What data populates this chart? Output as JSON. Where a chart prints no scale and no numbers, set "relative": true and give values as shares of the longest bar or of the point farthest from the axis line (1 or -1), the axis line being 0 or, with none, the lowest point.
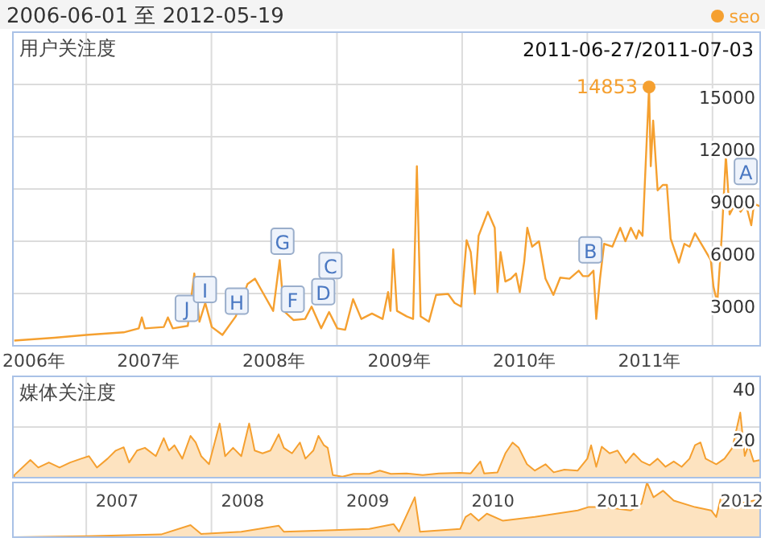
{
  "chart_data": [
    {
      "type": "line",
      "title": "2006-06-01 至 2012-05-19",
      "ylabel": "用户关注度",
      "legend": "top right",
      "grid": true,
      "xlim": [
        "2006-06-01",
        "2012-05-19"
      ],
      "ylim": [
        0,
        18000
      ],
      "yticks": [
        3000,
        6000,
        9000,
        12000,
        15000
      ],
      "xticks": [
        {
          "value": "2006-08-01",
          "label": "2006年"
        },
        {
          "value": "2007-07-01",
          "label": "2007年"
        },
        {
          "value": "2008-07-01",
          "label": "2008年"
        },
        {
          "value": "2009-07-01",
          "label": "2009年"
        },
        {
          "value": "2010-07-01",
          "label": "2010年"
        },
        {
          "value": "2011-07-01",
          "label": "2011年"
        },
        {
          "value": "2007-01-01",
          "label": null
        },
        {
          "value": "2008-01-01",
          "label": null
        },
        {
          "value": "2009-01-01",
          "label": null
        },
        {
          "value": "2010-01-01",
          "label": null
        },
        {
          "value": "2011-01-01",
          "label": null
        },
        {
          "value": "2012-01-01",
          "label": null
        }
      ],
      "annotations": [
        "2011-06-27/2011-07-03",
        {
          "text": "J",
          "x": "2007-10-21",
          "y": 2150
        },
        {
          "text": "I",
          "x": "2007-12-13",
          "y": 3230
        },
        {
          "text": "H",
          "x": "2008-03-15",
          "y": 2560
        },
        {
          "text": "G",
          "x": "2008-07-26",
          "y": 6000
        },
        {
          "text": "F",
          "x": "2008-08-25",
          "y": 2680
        },
        {
          "text": "D",
          "x": "2008-11-22",
          "y": 3100
        },
        {
          "text": "C",
          "x": "2008-12-13",
          "y": 4600
        },
        {
          "text": "B",
          "x": "2011-01-10",
          "y": 5500
        },
        {
          "text": "A",
          "x": "2012-04-07",
          "y": 10000
        }
      ],
      "series": [
        {
          "name": "seo",
          "color": "#f5a030",
          "x": [
            "2006-06-05",
            "2006-09-30",
            "2007-01-01",
            "2007-04-20",
            "2007-06-03",
            "2007-06-12",
            "2007-06-21",
            "2007-08-15",
            "2007-08-27",
            "2007-09-10",
            "2007-10-24",
            "2007-11-12",
            "2007-11-27",
            "2007-12-14",
            "2008-01-02",
            "2008-02-02",
            "2008-03-12",
            "2008-04-15",
            "2008-05-07",
            "2008-05-29",
            "2008-06-29",
            "2008-07-18",
            "2008-07-30",
            "2008-08-27",
            "2008-09-30",
            "2008-10-19",
            "2008-11-16",
            "2008-12-09",
            "2009-01-02",
            "2009-01-25",
            "2009-02-17",
            "2009-03-13",
            "2009-04-13",
            "2009-05-14",
            "2009-05-30",
            "2009-06-06",
            "2009-06-14",
            "2009-06-25",
            "2009-07-23",
            "2009-08-11",
            "2009-08-22",
            "2009-09-02",
            "2009-09-26",
            "2009-10-17",
            "2009-11-21",
            "2009-12-10",
            "2009-12-29",
            "2010-01-14",
            "2010-01-26",
            "2010-02-07",
            "2010-02-18",
            "2010-03-17",
            "2010-04-06",
            "2010-04-14",
            "2010-04-23",
            "2010-05-07",
            "2010-05-23",
            "2010-06-07",
            "2010-06-18",
            "2010-07-01",
            "2010-07-10",
            "2010-07-24",
            "2010-08-13",
            "2010-09-01",
            "2010-09-24",
            "2010-10-14",
            "2010-11-10",
            "2010-12-07",
            "2010-12-19",
            "2011-01-04",
            "2011-01-19",
            "2011-01-27",
            "2011-02-07",
            "2011-02-19",
            "2011-03-15",
            "2011-04-07",
            "2011-04-22",
            "2011-05-08",
            "2011-05-24",
            "2011-05-31",
            "2011-06-11",
            "2011-06-30",
            "2011-07-05",
            "2011-07-12",
            "2011-07-25",
            "2011-08-09",
            "2011-08-21",
            "2011-09-01",
            "2011-09-25",
            "2011-10-11",
            "2011-10-26",
            "2011-11-11",
            "2011-12-04",
            "2011-12-27",
            "2012-01-04",
            "2012-01-15",
            "2012-01-28",
            "2012-02-09",
            "2012-02-20",
            "2012-03-07",
            "2012-03-23",
            "2012-04-07",
            "2012-04-23",
            "2012-05-01",
            "2012-05-19"
          ],
          "values": [
            300,
            460,
            620,
            770,
            1000,
            1630,
            1000,
            1080,
            1630,
            1000,
            1140,
            4150,
            1380,
            2460,
            1080,
            620,
            1690,
            3540,
            3850,
            3080,
            2000,
            4920,
            2000,
            1480,
            1540,
            2250,
            1000,
            1940,
            1000,
            920,
            2680,
            1540,
            1850,
            1540,
            3080,
            2000,
            5540,
            2000,
            1690,
            1540,
            10310,
            1690,
            1380,
            2920,
            2980,
            2460,
            2250,
            6060,
            5380,
            2980,
            6310,
            7690,
            6770,
            3080,
            5380,
            3690,
            3850,
            4150,
            3080,
            4830,
            6770,
            5690,
            6000,
            3850,
            2920,
            3910,
            3850,
            4310,
            4000,
            4000,
            4310,
            1540,
            3850,
            5850,
            5690,
            6770,
            6000,
            6770,
            6150,
            6620,
            6310,
            14853,
            10310,
            12920,
            8920,
            9230,
            9230,
            6150,
            4770,
            5850,
            5690,
            6460,
            5690,
            4920,
            3380,
            2460,
            6310,
            10920,
            7540,
            8150,
            7690,
            8150,
            6920,
            8150,
            8000
          ],
          "value_labels": [
            null,
            null,
            null,
            null,
            null,
            null,
            null,
            null,
            null,
            null,
            null,
            null,
            null,
            null,
            null,
            null,
            null,
            null,
            null,
            null,
            null,
            null,
            null,
            null,
            null,
            null,
            null,
            null,
            null,
            null,
            null,
            null,
            null,
            null,
            null,
            null,
            null,
            null,
            null,
            null,
            null,
            null,
            null,
            null,
            null,
            null,
            null,
            null,
            null,
            null,
            null,
            null,
            null,
            null,
            null,
            null,
            null,
            null,
            null,
            null,
            null,
            null,
            null,
            null,
            null,
            null,
            null,
            null,
            null,
            null,
            null,
            null,
            null,
            null,
            null,
            null,
            null,
            null,
            null,
            null,
            null,
            "14853",
            null,
            null,
            null,
            null,
            null,
            null,
            null,
            null,
            null,
            null,
            null,
            null,
            null,
            null,
            null,
            null,
            null,
            null,
            null,
            null,
            null,
            null,
            null
          ]
        }
      ]
    },
    {
      "type": "area",
      "ylabel": "媒体关注度",
      "grid": true,
      "tick_labels": "y",
      "xlim": [
        "2006-06-01",
        "2012-05-19"
      ],
      "ylim": [
        0,
        40
      ],
      "yticks": [
        20,
        40
      ],
      "xticks": [
        {
          "value": "2007-01-01",
          "label": null
        },
        {
          "value": "2008-01-01",
          "label": null
        },
        {
          "value": "2009-01-01",
          "label": null
        },
        {
          "value": "2010-01-01",
          "label": null
        },
        {
          "value": "2011-01-01",
          "label": null
        },
        {
          "value": "2012-01-01",
          "label": null
        }
      ],
      "series": [
        {
          "color": "#f5a030",
          "x": [
            "2006-06-05",
            "2006-07-22",
            "2006-08-14",
            "2006-09-14",
            "2006-10-15",
            "2006-11-15",
            "2006-12-17",
            "2007-01-09",
            "2007-02-01",
            "2007-03-04",
            "2007-03-28",
            "2007-04-20",
            "2007-05-06",
            "2007-05-29",
            "2007-06-21",
            "2007-07-23",
            "2007-08-15",
            "2007-08-30",
            "2007-09-15",
            "2007-10-08",
            "2007-11-01",
            "2007-11-16",
            "2007-12-02",
            "2007-12-25",
            "2008-01-25",
            "2008-02-10",
            "2008-03-04",
            "2008-03-28",
            "2008-04-20",
            "2008-05-06",
            "2008-05-29",
            "2008-06-21",
            "2008-07-15",
            "2008-07-30",
            "2008-08-23",
            "2008-09-15",
            "2008-10-01",
            "2008-10-24",
            "2008-11-08",
            "2008-11-24",
            "2008-12-05",
            "2008-12-20",
            "2009-01-17",
            "2009-02-18",
            "2009-04-05",
            "2009-05-06",
            "2009-06-07",
            "2009-07-23",
            "2009-09-08",
            "2009-10-25",
            "2009-12-26",
            "2010-01-26",
            "2010-02-23",
            "2010-03-06",
            "2010-04-14",
            "2010-05-07",
            "2010-05-28",
            "2010-06-15",
            "2010-07-09",
            "2010-08-01",
            "2010-09-01",
            "2010-09-25",
            "2010-10-26",
            "2010-12-04",
            "2011-01-01",
            "2011-01-12",
            "2011-01-27",
            "2011-02-12",
            "2011-03-07",
            "2011-03-30",
            "2011-04-23",
            "2011-05-16",
            "2011-06-08",
            "2011-07-02",
            "2011-07-25",
            "2011-08-17",
            "2011-09-10",
            "2011-10-03",
            "2011-10-26",
            "2011-11-11",
            "2011-11-27",
            "2011-12-12",
            "2012-01-12",
            "2012-02-05",
            "2012-02-28",
            "2012-03-22",
            "2012-04-04",
            "2012-04-15",
            "2012-04-30",
            "2012-05-19"
          ],
          "values": [
            1,
            7,
            4,
            6,
            4,
            6,
            7.5,
            8.5,
            4,
            7.5,
            10.7,
            12,
            6,
            10.7,
            11.8,
            8.5,
            15.6,
            10.7,
            12.8,
            7.5,
            16.5,
            13.9,
            8.5,
            5.3,
            21.4,
            8.5,
            11.8,
            8.5,
            21.4,
            10.7,
            9.6,
            10.7,
            17.1,
            11.8,
            9.6,
            13.9,
            7.5,
            10.7,
            16.5,
            12.8,
            11.8,
            1,
            0.4,
            1.5,
            1.5,
            2.8,
            1.5,
            1.7,
            1,
            1.7,
            1.9,
            1.7,
            6.4,
            1.7,
            2.1,
            9.6,
            13.9,
            11.8,
            5.3,
            2.8,
            5.3,
            2.1,
            3.2,
            2.8,
            7.5,
            12.8,
            4.3,
            12.2,
            9.6,
            10.7,
            5.8,
            9.6,
            6.4,
            4.9,
            7.5,
            4.3,
            6.4,
            4.3,
            7.5,
            12.8,
            13.9,
            7.5,
            5.3,
            7.5,
            11.8,
            25.7,
            8.6,
            12.8,
            6.4,
            7
          ]
        }
      ]
    },
    {
      "type": "area",
      "relative": true,
      "grid": "x",
      "tick_labels": "x",
      "xlim": [
        "2006-06-01",
        "2012-05-19"
      ],
      "xticks": [
        {
          "value": "2007-04-01",
          "label": "2007"
        },
        {
          "value": "2008-04-01",
          "label": "2008"
        },
        {
          "value": "2009-04-01",
          "label": "2009"
        },
        {
          "value": "2010-04-01",
          "label": "2010"
        },
        {
          "value": "2011-04-01",
          "label": "2011"
        },
        {
          "value": "2012-04-01",
          "label": "2012"
        },
        {
          "value": "2007-01-01",
          "label": null
        },
        {
          "value": "2008-01-01",
          "label": null
        },
        {
          "value": "2009-01-01",
          "label": null
        },
        {
          "value": "2010-01-01",
          "label": null
        },
        {
          "value": "2011-01-01",
          "label": null
        },
        {
          "value": "2012-01-01",
          "label": null
        }
      ],
      "series": [
        {
          "color": "#f5a030",
          "x": [
            "2006-06-05",
            "2007-01-01",
            "2007-08-07",
            "2007-11-01",
            "2007-12-02",
            "2008-03-28",
            "2008-07-15",
            "2008-07-30",
            "2008-11-16",
            "2009-04-05",
            "2009-06-15",
            "2009-07-01",
            "2009-08-16",
            "2009-08-31",
            "2009-12-26",
            "2010-01-11",
            "2010-01-26",
            "2010-02-18",
            "2010-03-14",
            "2010-04-30",
            "2010-08-01",
            "2010-12-04",
            "2011-01-04",
            "2011-02-19",
            "2011-05-08",
            "2011-06-08",
            "2011-06-24",
            "2011-07-13",
            "2011-08-10",
            "2011-09-10",
            "2011-11-11",
            "2011-12-28",
            "2012-01-12",
            "2012-01-28",
            "2012-03-15",
            "2012-04-30",
            "2012-05-19"
          ],
          "values": [
            0,
            0.02,
            0.05,
            0.22,
            0.06,
            0.1,
            0.21,
            0.1,
            0.12,
            0.15,
            0.24,
            0.1,
            0.73,
            0.1,
            0.15,
            0.37,
            0.43,
            0.3,
            0.43,
            0.3,
            0.37,
            0.49,
            0.55,
            0.55,
            0.49,
            0.61,
            1,
            0.73,
            0.85,
            0.67,
            0.55,
            0.49,
            0.37,
            0.79,
            0.61,
            0.67,
            0.67
          ]
        }
      ]
    }
  ]
}
